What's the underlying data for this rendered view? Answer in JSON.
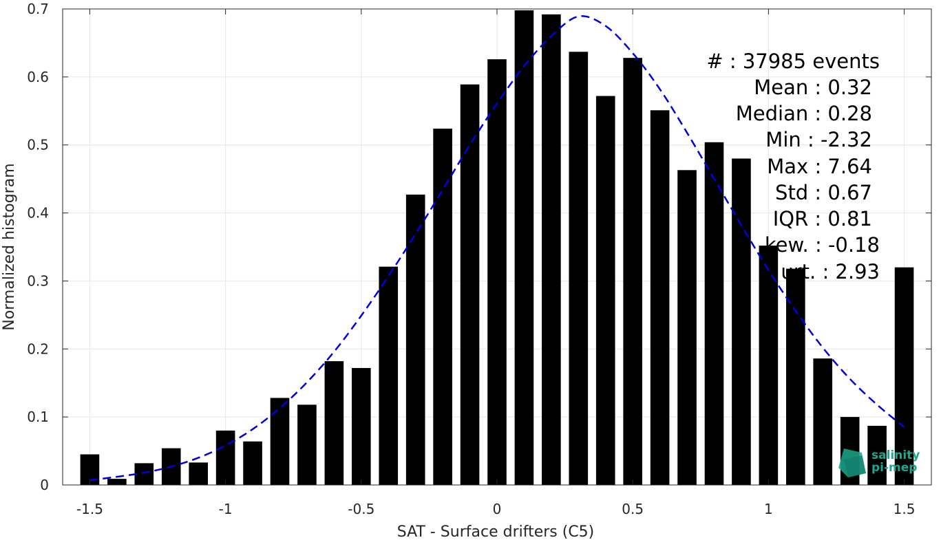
{
  "chart_data": {
    "type": "bar",
    "xlabel": "SAT - Surface drifters (C5)",
    "ylabel": "Normalized histogram",
    "xlim": [
      -1.6,
      1.6
    ],
    "ylim": [
      0,
      0.7
    ],
    "grid": true,
    "x_ticks": [
      -1.5,
      -1,
      -0.5,
      0,
      0.5,
      1,
      1.5
    ],
    "x_tick_labels": [
      "-1.5",
      "-1",
      "-0.5",
      "0",
      "0.5",
      "1",
      "1.5"
    ],
    "y_ticks": [
      0,
      0.1,
      0.2,
      0.3,
      0.4,
      0.5,
      0.6,
      0.7
    ],
    "y_tick_labels": [
      "0",
      "0.1",
      "0.2",
      "0.3",
      "0.4",
      "0.5",
      "0.6",
      "0.7"
    ],
    "bar_color": "#000000",
    "bar_width": 0.07,
    "x": [
      -1.5,
      -1.4,
      -1.3,
      -1.2,
      -1.1,
      -1.0,
      -0.9,
      -0.8,
      -0.7,
      -0.6,
      -0.5,
      -0.4,
      -0.3,
      -0.2,
      -0.1,
      0.0,
      0.1,
      0.2,
      0.3,
      0.4,
      0.5,
      0.6,
      0.7,
      0.8,
      0.9,
      1.0,
      1.1,
      1.2,
      1.3,
      1.4,
      1.5
    ],
    "values": [
      0.045,
      0.009,
      0.032,
      0.054,
      0.033,
      0.08,
      0.064,
      0.128,
      0.118,
      0.182,
      0.172,
      0.321,
      0.427,
      0.524,
      0.589,
      0.626,
      0.698,
      0.692,
      0.637,
      0.572,
      0.628,
      0.551,
      0.463,
      0.504,
      0.48,
      0.352,
      0.318,
      0.186,
      0.1,
      0.087,
      0.32
    ],
    "fit_curve": {
      "style": "dashed",
      "color": "#0000e0",
      "x": [
        -1.5,
        -1.4,
        -1.3,
        -1.2,
        -1.1,
        -1.0,
        -0.9,
        -0.8,
        -0.7,
        -0.6,
        -0.5,
        -0.4,
        -0.3,
        -0.2,
        -0.1,
        0.0,
        0.1,
        0.2,
        0.3,
        0.4,
        0.5,
        0.6,
        0.7,
        0.8,
        0.9,
        1.0,
        1.1,
        1.2,
        1.3,
        1.4,
        1.5
      ],
      "y": [
        0.007,
        0.012,
        0.018,
        0.027,
        0.04,
        0.058,
        0.082,
        0.113,
        0.151,
        0.196,
        0.249,
        0.307,
        0.369,
        0.434,
        0.5,
        0.561,
        0.616,
        0.66,
        0.689,
        0.675,
        0.635,
        0.582,
        0.518,
        0.45,
        0.382,
        0.316,
        0.256,
        0.202,
        0.156,
        0.118,
        0.085
      ]
    },
    "stats_lines": [
      "#  : 37985 events",
      "Mean : 0.32",
      "Median : 0.28",
      "Min : -2.32",
      "Max : 7.64",
      "Std : 0.67",
      "IQR : 0.81",
      "kew. : -0.18",
      "urt. : 2.93"
    ],
    "logo": {
      "line1": "salinity",
      "line2": "pi-mep",
      "color": "#1aa88e"
    }
  }
}
